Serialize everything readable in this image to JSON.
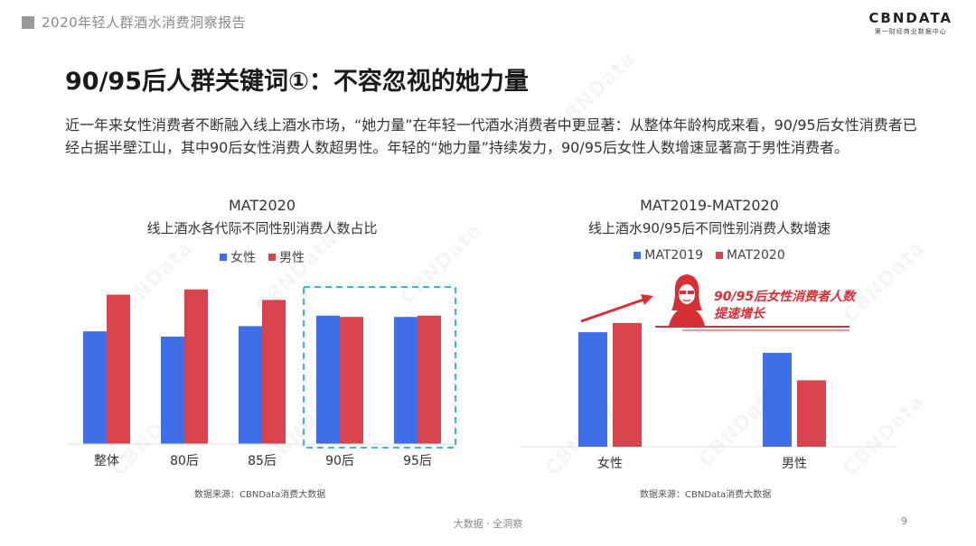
{
  "header": {
    "title": "2020年轻人群酒水消费洞察报告"
  },
  "logo": {
    "name": "CBNDATA",
    "sub": "第一财经商业数据中心"
  },
  "page_title": "90/95后人群关键词①：不容忽视的她力量",
  "intro": {
    "text": "近一年来女性消费者不断融入线上酒水市场，“她力量”在年轻一代酒水消费者中更显著：从整体年龄构成来看，90/95后女性消费者已经占据半壁江山，其中90后女性消费人数超男性。年轻的“她力量”持续发力，90/95后女性人数增速显著高于男性消费者。"
  },
  "colors": {
    "blue": "#3e6ee8",
    "red": "#d9434b",
    "highlight": "#3fb9c7",
    "arrow": "#d62f35"
  },
  "chart_data": [
    {
      "type": "bar",
      "title": "MAT2020",
      "subtitle": "线上酒水各代际不同性别消费人数占比",
      "categories": [
        "整体",
        "80后",
        "85后",
        "90后",
        "95后"
      ],
      "series": [
        {
          "name": "女性",
          "values": [
            43,
            41,
            45,
            49,
            48.5
          ]
        },
        {
          "name": "男性",
          "values": [
            57,
            59,
            55,
            48.5,
            49
          ]
        }
      ],
      "ylim": [
        0,
        62
      ],
      "grid": false,
      "legend": "top-center",
      "highlight_categories": [
        "90后",
        "95后"
      ],
      "source": "数据来源：CBNData消费大数据"
    },
    {
      "type": "bar",
      "title": "MAT2019-MAT2020",
      "subtitle": "线上酒水90/95后不同性别消费人数增速",
      "categories": [
        "女性",
        "男性"
      ],
      "series": [
        {
          "name": "MAT2019",
          "values": [
            100,
            82
          ]
        },
        {
          "name": "MAT2020",
          "values": [
            108,
            58
          ]
        }
      ],
      "ylim": [
        0,
        130
      ],
      "grid": false,
      "legend": "top-center",
      "annotation": "90/95后女性消费者人数提速增长",
      "source": "数据来源：CBNData消费大数据"
    }
  ],
  "callout": {
    "line1": "90/95后女性消费者人数",
    "line2": "提速增长"
  },
  "footer": {
    "center": "大数据 · 全洞察",
    "page": "9"
  },
  "watermark": "CBNData"
}
